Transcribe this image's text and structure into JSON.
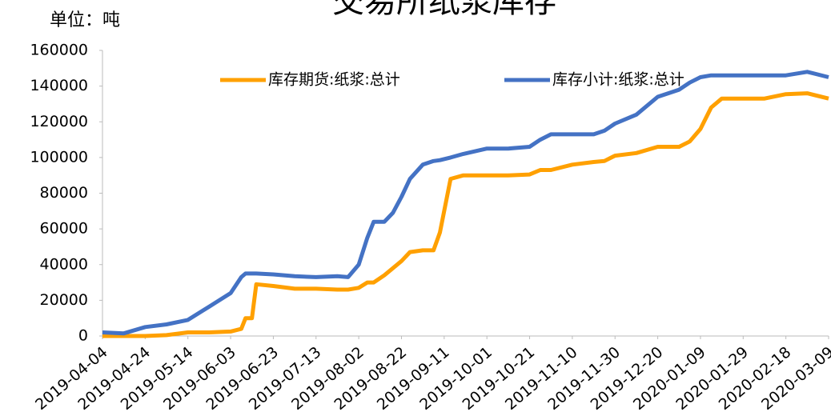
{
  "chart_data": {
    "type": "line",
    "title": "交易所纸浆库存",
    "unit_label": "单位：吨",
    "x": [
      "2019-04-04",
      "2019-04-14",
      "2019-04-24",
      "2019-05-04",
      "2019-05-14",
      "2019-05-24",
      "2019-06-03",
      "2019-06-08",
      "2019-06-10",
      "2019-06-13",
      "2019-06-15",
      "2019-06-23",
      "2019-07-03",
      "2019-07-13",
      "2019-07-23",
      "2019-07-28",
      "2019-08-02",
      "2019-08-06",
      "2019-08-09",
      "2019-08-14",
      "2019-08-18",
      "2019-08-22",
      "2019-08-26",
      "2019-09-01",
      "2019-09-06",
      "2019-09-09",
      "2019-09-14",
      "2019-09-20",
      "2019-10-01",
      "2019-10-11",
      "2019-10-21",
      "2019-10-26",
      "2019-10-31",
      "2019-11-10",
      "2019-11-20",
      "2019-11-25",
      "2019-11-30",
      "2019-12-10",
      "2019-12-20",
      "2019-12-30",
      "2020-01-04",
      "2020-01-09",
      "2020-01-14",
      "2020-01-19",
      "2020-01-29",
      "2020-02-08",
      "2020-02-18",
      "2020-02-28",
      "2020-03-09"
    ],
    "series": [
      {
        "name": "库存期货:纸浆:总计",
        "color": "#ffa000",
        "values": [
          0,
          0,
          0,
          500,
          2000,
          2000,
          2500,
          4000,
          10000,
          10000,
          29000,
          28000,
          26500,
          26500,
          26000,
          26000,
          27000,
          30000,
          30000,
          34000,
          38000,
          42000,
          47000,
          48000,
          48000,
          58000,
          88000,
          90000,
          90000,
          90000,
          90500,
          93000,
          93000,
          96000,
          97500,
          98000,
          101000,
          102500,
          106000,
          106000,
          109000,
          116000,
          128000,
          133000,
          133000,
          133000,
          135500,
          136000,
          133000
        ]
      },
      {
        "name": "库存小计:纸浆:总计",
        "color": "#4472c4",
        "values": [
          2000,
          1500,
          5000,
          6500,
          9000,
          16500,
          24000,
          33000,
          35000,
          35000,
          35000,
          34500,
          33500,
          33000,
          33500,
          33000,
          40000,
          55000,
          64000,
          64000,
          69000,
          78000,
          88000,
          96000,
          98000,
          98500,
          100000,
          102000,
          105000,
          105000,
          106000,
          110000,
          113000,
          113000,
          113000,
          115000,
          119000,
          124000,
          134000,
          138000,
          142000,
          145000,
          146000,
          146000,
          146000,
          146000,
          146000,
          148000,
          145000
        ]
      }
    ],
    "xlim": [
      "2019-04-04",
      "2020-03-09"
    ],
    "xticks": [
      "2019-04-04",
      "2019-04-24",
      "2019-05-14",
      "2019-06-03",
      "2019-06-23",
      "2019-07-13",
      "2019-08-02",
      "2019-08-22",
      "2019-09-11",
      "2019-10-01",
      "2019-10-21",
      "2019-11-10",
      "2019-11-30",
      "2019-12-20",
      "2020-01-09",
      "2020-01-29",
      "2020-02-18",
      "2020-03-09"
    ],
    "ylim": [
      0,
      160000
    ],
    "yticks": [
      0,
      20000,
      40000,
      60000,
      80000,
      100000,
      120000,
      140000,
      160000
    ],
    "grid": false,
    "legend": "top"
  }
}
